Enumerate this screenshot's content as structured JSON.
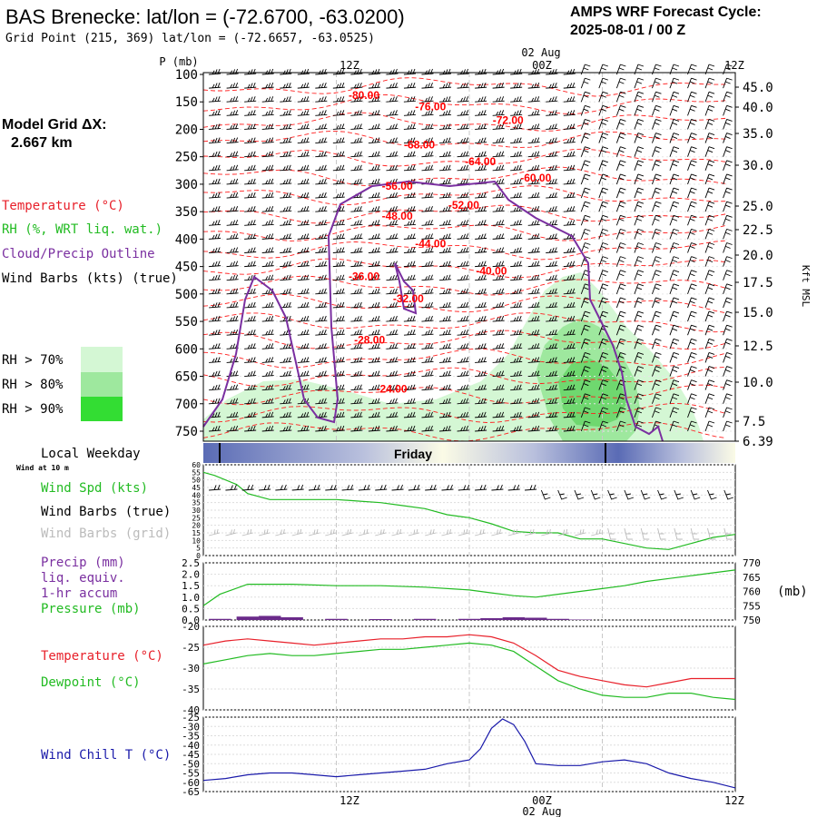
{
  "header": {
    "title": "BAS Brenecke:  lat/lon = (-72.6700, -63.0200)",
    "subtitle": "Grid Point (215, 369) lat/lon = (-72.6657, -63.0525)",
    "cycle_label": "AMPS WRF Forecast Cycle:",
    "cycle_value": "2025-08-01 / 00  Z"
  },
  "top_axis": {
    "date_label": "02 Aug",
    "p_label": "P (mb)",
    "times": [
      "12Z",
      "00Z",
      "12Z"
    ]
  },
  "bottom_axis": {
    "times": [
      "12Z",
      "00Z",
      "12Z"
    ],
    "date_label": "02 Aug"
  },
  "left_panel": {
    "model_grid_label": "Model Grid ΔX:",
    "model_grid_value": "2.667 km",
    "legend": [
      {
        "text": "Temperature (°C)",
        "color": "#e8202a"
      },
      {
        "text": "RH (%, WRT liq. wat.)",
        "color": "#22bb22"
      },
      {
        "text": "Cloud/Precip Outline",
        "color": "#7a2fa0"
      },
      {
        "text": "Wind Barbs (kts) (true)",
        "color": "#000000"
      }
    ],
    "rh_legend": [
      {
        "text": "RH > 70%",
        "color": "#d4f7d4"
      },
      {
        "text": "RH > 80%",
        "color": "#9ee89e"
      },
      {
        "text": "RH > 90%",
        "color": "#33dd33"
      }
    ]
  },
  "weekday": {
    "label": "Local Weekday",
    "day": "Friday"
  },
  "wind_panel": {
    "sub_label": "Wind at 10 m",
    "labels": [
      {
        "text": "Wind Spd (kts)",
        "color": "#22bb22"
      },
      {
        "text": "Wind Barbs (true)",
        "color": "#000000"
      },
      {
        "text": "Wind Barbs (grid)",
        "color": "#bbbbbb"
      }
    ]
  },
  "precip_panel": {
    "labels": [
      {
        "text": "Precip (mm)",
        "color": "#7a2fa0"
      },
      {
        "text": "liq. equiv.",
        "color": "#7a2fa0"
      },
      {
        "text": "1-hr accum",
        "color": "#7a2fa0"
      },
      {
        "text": "Pressure (mb)",
        "color": "#22bb22"
      }
    ],
    "right_unit": "(mb)"
  },
  "temp_panel": {
    "labels": [
      {
        "text": "Temperature (°C)",
        "color": "#e8202a"
      },
      {
        "text": "Dewpoint (°C)",
        "color": "#22bb22"
      }
    ]
  },
  "windchill_panel": {
    "labels": [
      {
        "text": "Wind Chill T (°C)",
        "color": "#1a1aaa"
      }
    ]
  },
  "chart_data": [
    {
      "type": "line",
      "name_hint": "upper-air cross section",
      "ylabel": "P (mb)",
      "y2label": "Kft MSL",
      "ylim": [
        760,
        100
      ],
      "pressure_ticks": [
        100,
        150,
        200,
        250,
        300,
        350,
        400,
        450,
        500,
        550,
        600,
        650,
        700,
        750
      ],
      "height_ticks": [
        "45.0",
        "40.0",
        "35.0",
        "30.0",
        "25.0",
        "22.5",
        "20.0",
        "17.5",
        "15.0",
        "12.5",
        "10.0",
        "7.5",
        "6.39"
      ],
      "x_hours": [
        0,
        48
      ],
      "temperature_labels": [
        {
          "text": "-80.00",
          "hour": 14.5,
          "p": 145
        },
        {
          "text": "-76.00",
          "hour": 20.5,
          "p": 165
        },
        {
          "text": "-72.00",
          "hour": 27.5,
          "p": 190
        },
        {
          "text": "-68.00",
          "hour": 19.5,
          "p": 235
        },
        {
          "text": "-64.00",
          "hour": 25.0,
          "p": 265
        },
        {
          "text": "-60.00",
          "hour": 30.0,
          "p": 295
        },
        {
          "text": "-56.00",
          "hour": 17.5,
          "p": 310
        },
        {
          "text": "-52.00",
          "hour": 23.5,
          "p": 345
        },
        {
          "text": "-48.00",
          "hour": 17.5,
          "p": 365
        },
        {
          "text": "-44.00",
          "hour": 20.5,
          "p": 415
        },
        {
          "text": "-40.00",
          "hour": 26.0,
          "p": 465
        },
        {
          "text": "-36.00",
          "hour": 14.5,
          "p": 475
        },
        {
          "text": "-32.00",
          "hour": 18.5,
          "p": 515
        },
        {
          "text": "-28.00",
          "hour": 15.0,
          "p": 590
        },
        {
          "text": "-24.00",
          "hour": 17.0,
          "p": 680
        }
      ]
    },
    {
      "type": "line",
      "name_hint": "10 m wind speed",
      "ylim": [
        0,
        60
      ],
      "ticks": [
        0,
        5,
        10,
        15,
        20,
        25,
        30,
        35,
        40,
        45,
        50,
        55,
        60
      ],
      "x": [
        0,
        1,
        3,
        4,
        6,
        8,
        10,
        12,
        14,
        16,
        18,
        20,
        22,
        24,
        26,
        28,
        30,
        32,
        34,
        36,
        38,
        40,
        42,
        44,
        46,
        48
      ],
      "values": [
        55,
        53,
        47,
        41,
        37,
        37,
        37,
        37,
        36,
        35,
        33,
        31,
        27,
        25,
        21,
        16,
        15,
        15,
        11,
        11,
        8,
        5,
        4,
        8,
        12,
        14
      ]
    },
    {
      "type": "line",
      "name_hint": "precip and pressure",
      "ylim": [
        0,
        2.5
      ],
      "y2lim": [
        750,
        770
      ],
      "ticks_left": [
        "0.0",
        "0.5",
        "1.0",
        "1.5",
        "2.0",
        "2.5"
      ],
      "ticks_right": [
        "750",
        "755",
        "760",
        "765",
        "770"
      ],
      "x": [
        0,
        1.5,
        4,
        6,
        8,
        12,
        16,
        20,
        24,
        26,
        28,
        30,
        32,
        34,
        36,
        38,
        40,
        42,
        44,
        46,
        48
      ],
      "pressure_mb": [
        755,
        759,
        762.5,
        762.5,
        762.5,
        762,
        762,
        761.5,
        760.5,
        759.5,
        758.5,
        758,
        759,
        760,
        761,
        762,
        763.5,
        764.5,
        765.5,
        766.5,
        767.5
      ],
      "precip_mm": [
        0,
        0.05,
        0.15,
        0.18,
        0.12,
        0.05,
        0.04,
        0.05,
        0.05,
        0.08,
        0.12,
        0.1,
        0.05,
        0.02,
        0,
        0,
        0,
        0,
        0,
        0,
        0
      ]
    },
    {
      "type": "line",
      "name_hint": "temperature and dewpoint",
      "ylim": [
        -40,
        -20
      ],
      "ticks": [
        -20,
        -25,
        -30,
        -35,
        -40
      ],
      "series": [
        {
          "name": "Temperature",
          "color": "#e8202a",
          "x": [
            0,
            2,
            4,
            6,
            8,
            10,
            12,
            14,
            16,
            18,
            20,
            22,
            24,
            26,
            28,
            30,
            32,
            34,
            36,
            38,
            40,
            42,
            44,
            46,
            48
          ],
          "values": [
            -24.5,
            -23.5,
            -23,
            -23.5,
            -24,
            -24.5,
            -24,
            -23.5,
            -23,
            -23,
            -22.5,
            -22.5,
            -22,
            -22.5,
            -24,
            -27,
            -30.5,
            -32,
            -33,
            -34,
            -34.5,
            -33.5,
            -32.5,
            -32.5,
            -32.5
          ]
        },
        {
          "name": "Dewpoint",
          "color": "#22bb22",
          "x": [
            0,
            2,
            4,
            6,
            8,
            10,
            12,
            14,
            16,
            18,
            20,
            22,
            24,
            26,
            28,
            30,
            32,
            34,
            36,
            38,
            40,
            42,
            44,
            46,
            48
          ],
          "values": [
            -29,
            -28,
            -27,
            -26.5,
            -27,
            -27,
            -26.5,
            -26,
            -25.5,
            -25.5,
            -25,
            -24.5,
            -24,
            -24.5,
            -26,
            -29.5,
            -33,
            -35,
            -36.5,
            -37,
            -37,
            -36,
            -36,
            -37,
            -37.5
          ]
        }
      ]
    },
    {
      "type": "line",
      "name_hint": "wind chill",
      "ylim": [
        -65,
        -25
      ],
      "ticks": [
        -25,
        -30,
        -35,
        -40,
        -45,
        -50,
        -55,
        -60,
        -65
      ],
      "x": [
        0,
        2,
        4,
        6,
        8,
        10,
        12,
        14,
        16,
        18,
        20,
        22,
        24,
        25,
        26,
        27,
        28,
        29,
        30,
        32,
        34,
        36,
        38,
        40,
        42,
        44,
        46,
        48
      ],
      "values": [
        -59,
        -58,
        -56,
        -55,
        -55,
        -56,
        -57,
        -56,
        -55,
        -54,
        -53,
        -50,
        -48,
        -42,
        -31,
        -26,
        -29,
        -38,
        -50,
        -51,
        -51,
        -49,
        -48,
        -50,
        -55,
        -58,
        -60,
        -63
      ]
    }
  ]
}
